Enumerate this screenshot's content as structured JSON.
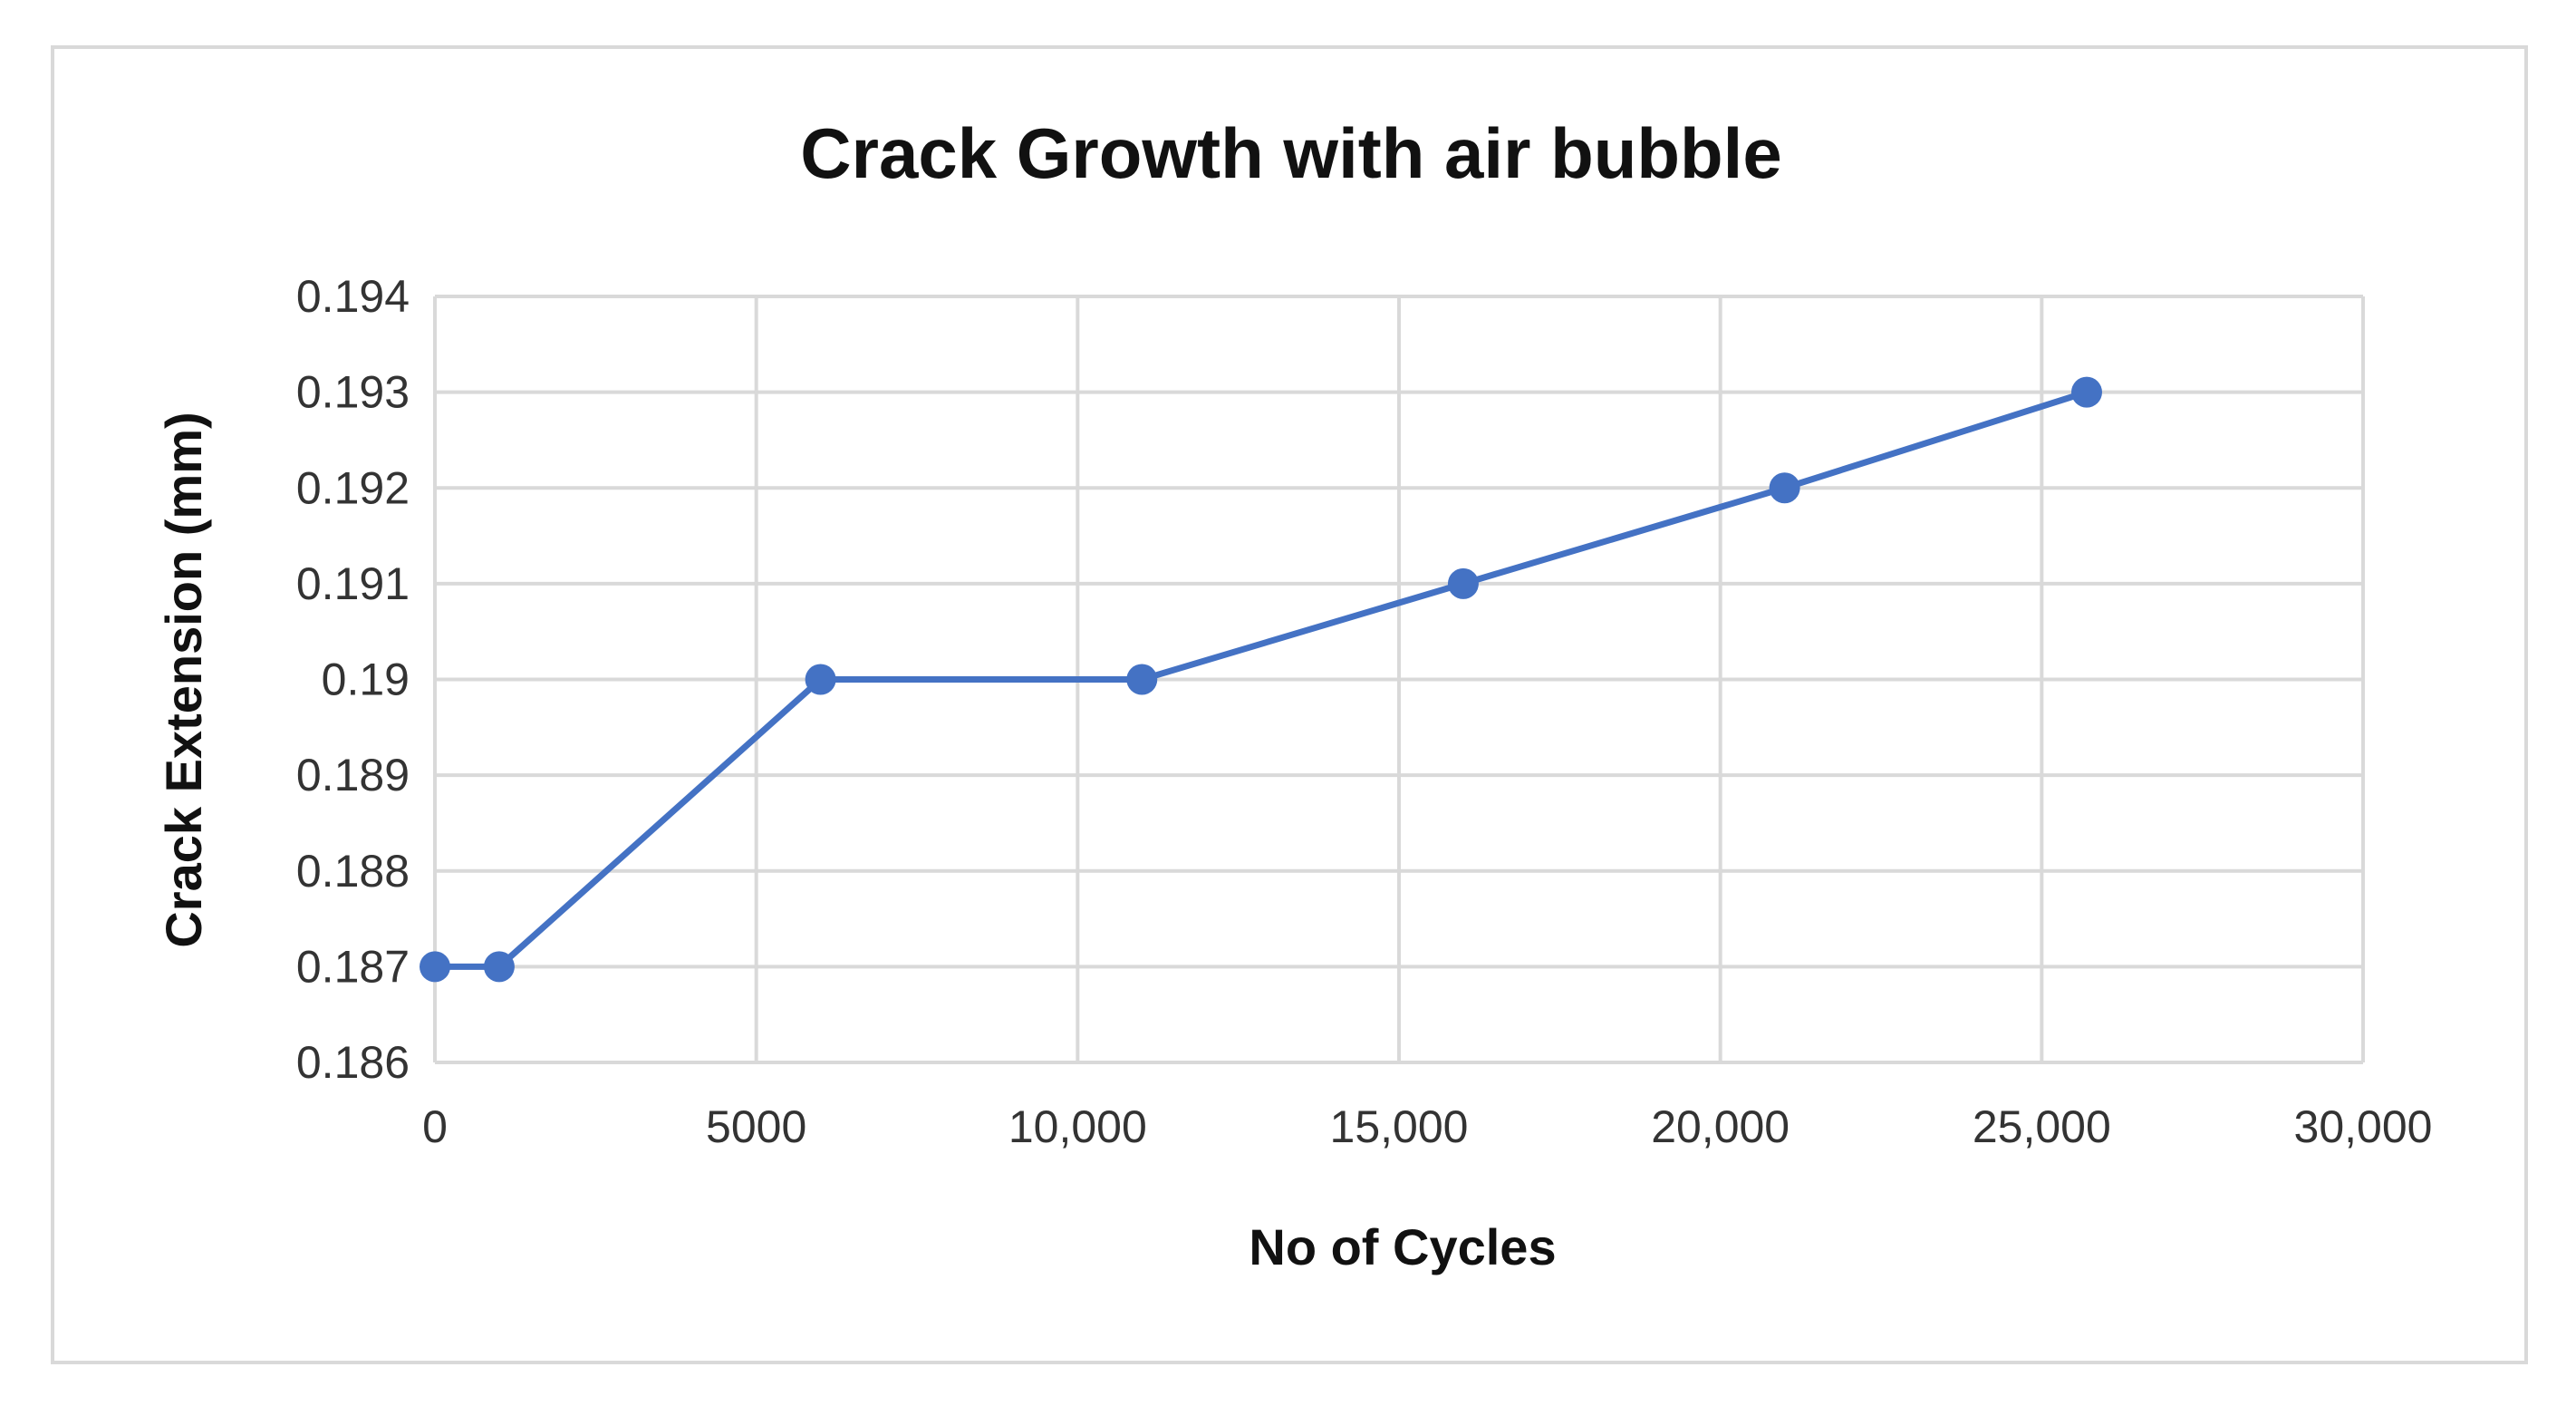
{
  "chart_data": {
    "type": "line",
    "title": "Crack Growth with air bubble",
    "xlabel": "No of Cycles",
    "ylabel": "Crack Extension (mm)",
    "xlim": [
      0,
      30000
    ],
    "ylim": [
      0.186,
      0.194
    ],
    "x_ticks": [
      "0",
      "5000",
      "10,000",
      "15,000",
      "20,000",
      "25,000",
      "30,000"
    ],
    "y_ticks": [
      "0.186",
      "0.187",
      "0.188",
      "0.189",
      "0.19",
      "0.191",
      "0.192",
      "0.193",
      "0.194"
    ],
    "grid": true,
    "legend": "none",
    "series": [
      {
        "color": "#4472C4",
        "x": [
          0,
          1000,
          6000,
          11000,
          16000,
          21000,
          25700
        ],
        "y": [
          0.187,
          0.187,
          0.19,
          0.19,
          0.191,
          0.192,
          0.193
        ]
      }
    ]
  }
}
